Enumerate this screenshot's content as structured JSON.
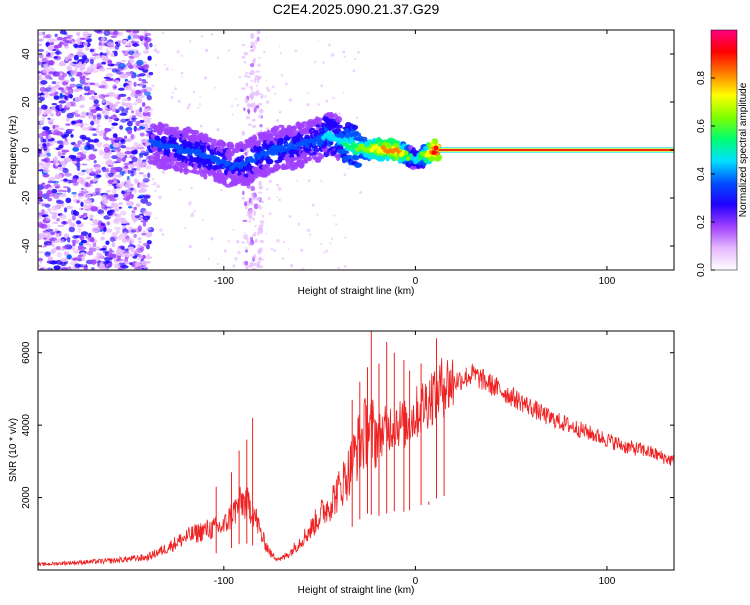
{
  "title": "C2E4.2025.090.21.37.G29",
  "chart_data": [
    {
      "type": "heatmap",
      "xlabel": "Height of straight line (km)",
      "ylabel": "Frequency (Hz)",
      "xlim": [
        -197,
        135
      ],
      "ylim": [
        -50,
        50
      ],
      "xticks": [
        -100,
        0,
        100
      ],
      "yticks": [
        -40,
        -20,
        0,
        20,
        40
      ],
      "colorbar": {
        "label": "Normalized spectral amplitude",
        "range": [
          0,
          1
        ],
        "ticks": [
          0.0,
          0.2,
          0.4,
          0.6,
          0.8
        ],
        "colors": [
          "#ffffff",
          "#e6b8ff",
          "#a040ff",
          "#2000ff",
          "#0050ff",
          "#00e0ff",
          "#00ff70",
          "#80ff00",
          "#ffff00",
          "#ff8000",
          "#ff0000",
          "#ff0080"
        ]
      },
      "ridge": {
        "note_points_x_km": [
          -138,
          -120,
          -110,
          -100,
          -95,
          -90,
          -80,
          -70,
          -60,
          -50,
          -45,
          -40,
          -35,
          -30,
          -25,
          -20,
          -10,
          -5,
          0,
          5,
          10,
          20,
          50,
          100,
          135
        ],
        "freq_hz": [
          3,
          0,
          -2,
          -5,
          -7,
          -6,
          -2,
          1,
          2,
          4,
          6,
          5,
          2,
          1,
          0.5,
          0.5,
          0,
          -2,
          -4,
          -2,
          0,
          0,
          0,
          0,
          0
        ],
        "amplitude": [
          0.3,
          0.35,
          0.35,
          0.35,
          0.3,
          0.35,
          0.35,
          0.35,
          0.35,
          0.35,
          0.4,
          0.4,
          0.5,
          0.55,
          0.6,
          0.7,
          0.8,
          0.6,
          0.4,
          0.6,
          0.85,
          0.95,
          0.95,
          0.95,
          0.95
        ]
      },
      "noise_region_x_km": [
        -197,
        -138
      ]
    },
    {
      "type": "line",
      "xlabel": "Height of straight line (km)",
      "ylabel": "SNR (10 * v/v)",
      "xlim": [
        -197,
        135
      ],
      "ylim": [
        0,
        6600
      ],
      "xticks": [
        -100,
        0,
        100
      ],
      "yticks": [
        2000,
        4000,
        6000
      ],
      "series": [
        {
          "color": "#ee2222",
          "envelope_x": [
            -197,
            -180,
            -160,
            -140,
            -130,
            -120,
            -110,
            -100,
            -95,
            -90,
            -85,
            -80,
            -75,
            -70,
            -65,
            -60,
            -55,
            -50,
            -45,
            -40,
            -35,
            -30,
            -25,
            -20,
            -15,
            -10,
            -5,
            0,
            5,
            10,
            15,
            20,
            25,
            30,
            40,
            50,
            60,
            70,
            80,
            90,
            100,
            110,
            120,
            135
          ],
          "envelope_y": [
            150,
            200,
            250,
            350,
            600,
            900,
            1100,
            1200,
            1600,
            1900,
            1700,
            900,
            400,
            300,
            500,
            800,
            1100,
            1500,
            1800,
            2200,
            2700,
            3400,
            3900,
            3700,
            3900,
            4100,
            4000,
            4300,
            4600,
            4900,
            5100,
            5200,
            5300,
            5400,
            5100,
            4800,
            4500,
            4200,
            4000,
            3800,
            3600,
            3400,
            3300,
            3000
          ],
          "spike_x": [
            -104,
            -96,
            -92,
            -88,
            -85,
            -33,
            -29,
            -25,
            -23,
            -19,
            -15,
            -11,
            -6,
            -3,
            3,
            7,
            11,
            15
          ],
          "spike_y": [
            2300,
            2700,
            3300,
            3600,
            4200,
            4700,
            5200,
            5600,
            6600,
            5700,
            6300,
            6000,
            5800,
            5500,
            5700,
            1800,
            6400,
            5300
          ]
        }
      ]
    }
  ]
}
